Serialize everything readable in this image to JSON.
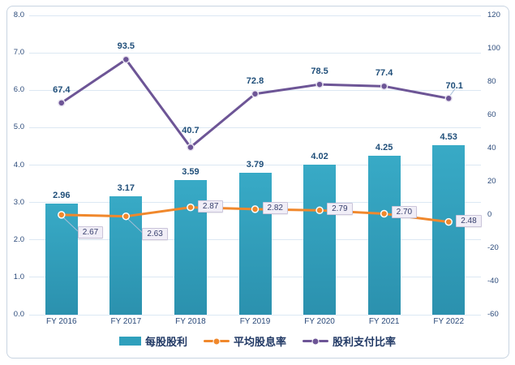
{
  "chart_data": {
    "type": "combo-bar-line",
    "categories": [
      "FY 2016",
      "FY 2017",
      "FY 2018",
      "FY 2019",
      "FY 2020",
      "FY 2021",
      "FY 2022"
    ],
    "series": [
      {
        "name": "每股股利",
        "type": "bar",
        "axis": "left",
        "values": [
          2.96,
          3.17,
          3.59,
          3.79,
          4.02,
          4.25,
          4.53
        ],
        "labels": [
          "2.96",
          "3.17",
          "3.59",
          "3.79",
          "4.02",
          "4.25",
          "4.53"
        ]
      },
      {
        "name": "平均股息率",
        "type": "line",
        "axis": "left",
        "values": [
          2.67,
          2.63,
          2.87,
          2.82,
          2.79,
          2.7,
          2.48
        ],
        "labels": [
          "2.67",
          "2.63",
          "2.87",
          "2.82",
          "2.79",
          "2.70",
          "2.48"
        ]
      },
      {
        "name": "股利支付比率",
        "type": "line",
        "axis": "right",
        "values": [
          67.4,
          93.5,
          40.7,
          72.8,
          78.5,
          77.4,
          70.1
        ],
        "labels": [
          "67.4",
          "93.5",
          "40.7",
          "72.8",
          "78.5",
          "77.4",
          "70.1"
        ]
      }
    ],
    "left_axis": {
      "min": 0,
      "max": 8,
      "step": 1,
      "ticks": [
        "8.0",
        "7.0",
        "6.0",
        "5.0",
        "4.0",
        "3.0",
        "2.0",
        "1.0",
        "0.0"
      ]
    },
    "right_axis": {
      "min": -60,
      "max": 120,
      "step": 20,
      "ticks": [
        "120",
        "100",
        "80",
        "60",
        "40",
        "20",
        "0",
        "-20",
        "-40",
        "-60"
      ]
    },
    "grid": "horizontal",
    "legend_position": "bottom",
    "title": ""
  },
  "legend": [
    {
      "label": "每股股利",
      "marker": "bar-swatch"
    },
    {
      "label": "平均股息率",
      "marker": "line-dot"
    },
    {
      "label": "股利支付比率",
      "marker": "line-dot"
    }
  ],
  "colors": {
    "bar": "#2fa0bc",
    "bar_gradient_top": "#38aac6",
    "bar_gradient_bottom": "#2b91ae",
    "dividend_yield_line": "#f0882c",
    "payout_ratio_line": "#6d5596",
    "data_label": "#1f4e79",
    "axis_tick": "#2b4a7a",
    "gridline": "#dce8f3",
    "card_border": "#c8d4e1",
    "callout_bg": "#f1eef7",
    "callout_border": "#cbc5da",
    "legend_text": "#203864",
    "leader_line": "#a9c0d8"
  }
}
